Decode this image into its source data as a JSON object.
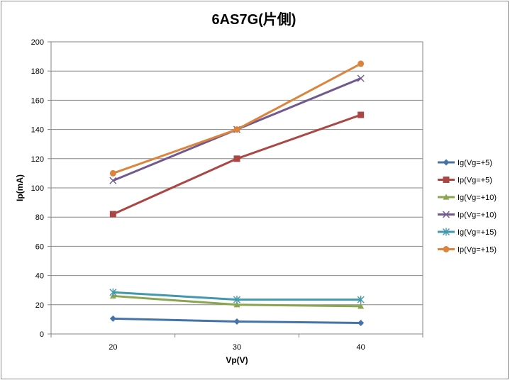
{
  "chart_data": {
    "type": "line",
    "title": "6AS7G(片側)",
    "xlabel": "Vp(V)",
    "ylabel": "Ip(mA)",
    "categories": [
      "20",
      "30",
      "40"
    ],
    "ylim": [
      0,
      200
    ],
    "yticks": [
      0,
      20,
      40,
      60,
      80,
      100,
      120,
      140,
      160,
      180,
      200
    ],
    "grid": true,
    "legend_position": "right",
    "series": [
      {
        "name": "Ig(Vg=+5)",
        "values": [
          10.5,
          8.5,
          7.5
        ],
        "color": "#4572A7",
        "marker": "diamond"
      },
      {
        "name": "Ip(Vg=+5)",
        "values": [
          82,
          120,
          150
        ],
        "color": "#AA4643",
        "marker": "square"
      },
      {
        "name": "Ig(Vg=+10)",
        "values": [
          26,
          20,
          19
        ],
        "color": "#89A54E",
        "marker": "triangle"
      },
      {
        "name": "Ip(Vg=+10)",
        "values": [
          105,
          140,
          175
        ],
        "color": "#71588F",
        "marker": "x"
      },
      {
        "name": "Ig(Vg=+15)",
        "values": [
          28.5,
          23.5,
          23.5
        ],
        "color": "#4198AF",
        "marker": "star"
      },
      {
        "name": "Ip(Vg=+15)",
        "values": [
          110,
          140,
          185
        ],
        "color": "#DB843D",
        "marker": "circle"
      }
    ]
  }
}
